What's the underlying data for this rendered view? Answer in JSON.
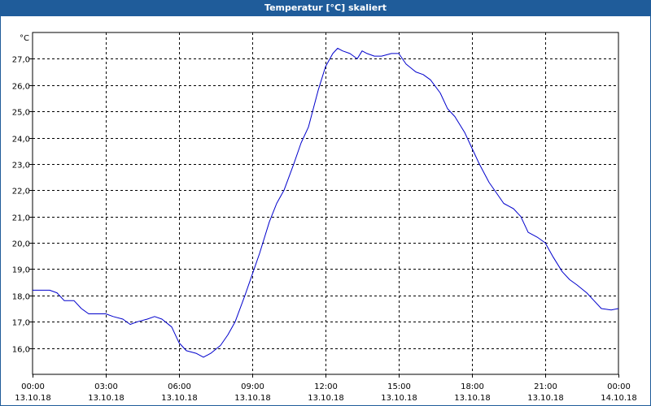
{
  "window": {
    "title": "Temperatur [°C] skaliert"
  },
  "colors": {
    "titlebar": "#1f5c9a",
    "line": "#0000cc",
    "grid": "#000000"
  },
  "chart_data": {
    "type": "line",
    "title": "Temperatur [°C] skaliert",
    "ylabel": "°C",
    "xlabel": "",
    "grid": true,
    "ylim": [
      15.0,
      28.0
    ],
    "xlim_hours": [
      0,
      24
    ],
    "y_ticks": [
      "16,0",
      "17,0",
      "18,0",
      "19,0",
      "20,0",
      "21,0",
      "22,0",
      "23,0",
      "24,0",
      "25,0",
      "26,0",
      "27,0"
    ],
    "y_tick_values": [
      16,
      17,
      18,
      19,
      20,
      21,
      22,
      23,
      24,
      25,
      26,
      27
    ],
    "x_ticks": [
      {
        "hour": 0,
        "time": "00:00",
        "date": "13.10.18"
      },
      {
        "hour": 3,
        "time": "03:00",
        "date": "13.10.18"
      },
      {
        "hour": 6,
        "time": "06:00",
        "date": "13.10.18"
      },
      {
        "hour": 9,
        "time": "09:00",
        "date": "13.10.18"
      },
      {
        "hour": 12,
        "time": "12:00",
        "date": "13.10.18"
      },
      {
        "hour": 15,
        "time": "15:00",
        "date": "13.10.18"
      },
      {
        "hour": 18,
        "time": "18:00",
        "date": "13.10.18"
      },
      {
        "hour": 21,
        "time": "21:00",
        "date": "13.10.18"
      },
      {
        "hour": 24,
        "time": "00:00",
        "date": "14.10.18"
      }
    ],
    "series": [
      {
        "x": [
          0.0,
          0.3,
          0.7,
          1.0,
          1.3,
          1.7,
          2.0,
          2.3,
          2.7,
          3.0,
          3.3,
          3.7,
          4.0,
          4.3,
          4.7,
          5.0,
          5.3,
          5.7,
          6.0,
          6.3,
          6.7,
          7.0,
          7.3,
          7.7,
          8.0,
          8.3,
          8.7,
          9.0,
          9.3,
          9.7,
          10.0,
          10.3,
          10.7,
          11.0,
          11.3,
          11.7,
          12.0,
          12.3,
          12.5,
          12.7,
          13.0,
          13.3,
          13.5,
          13.7,
          14.0,
          14.3,
          14.7,
          15.0,
          15.3,
          15.7,
          16.0,
          16.3,
          16.7,
          17.0,
          17.3,
          17.7,
          18.0,
          18.3,
          18.7,
          19.0,
          19.3,
          19.7,
          20.0,
          20.3,
          20.7,
          21.0,
          21.3,
          21.7,
          22.0,
          22.3,
          22.7,
          23.0,
          23.3,
          23.7,
          24.0
        ],
        "y": [
          18.2,
          18.2,
          18.2,
          18.1,
          17.8,
          17.8,
          17.5,
          17.3,
          17.3,
          17.3,
          17.2,
          17.1,
          16.9,
          17.0,
          17.1,
          17.2,
          17.1,
          16.8,
          16.2,
          15.9,
          15.8,
          15.65,
          15.8,
          16.1,
          16.5,
          17.0,
          18.0,
          18.8,
          19.6,
          20.8,
          21.5,
          22.0,
          23.0,
          23.8,
          24.4,
          25.8,
          26.7,
          27.2,
          27.4,
          27.3,
          27.2,
          27.0,
          27.3,
          27.2,
          27.1,
          27.1,
          27.2,
          27.2,
          26.8,
          26.5,
          26.4,
          26.2,
          25.7,
          25.1,
          24.8,
          24.2,
          23.6,
          23.0,
          22.3,
          21.9,
          21.5,
          21.3,
          21.0,
          20.4,
          20.2,
          20.0,
          19.5,
          18.9,
          18.6,
          18.4,
          18.1,
          17.8,
          17.5,
          17.45,
          17.5
        ]
      }
    ]
  }
}
